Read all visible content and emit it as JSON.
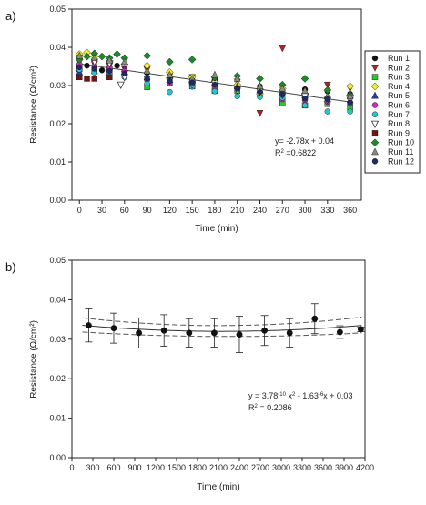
{
  "chart_data": [
    {
      "panel": "a)",
      "type": "scatter",
      "xlabel": "Time (min)",
      "ylabel": "Resistance (Ω/cm²)",
      "xlim": [
        -10,
        375
      ],
      "ylim": [
        0,
        0.05
      ],
      "x_ticks": [
        "0",
        "30",
        "60",
        "90",
        "120",
        "150",
        "180",
        "210",
        "240",
        "270",
        "300",
        "330",
        "360"
      ],
      "y_ticks": [
        "0.00",
        "0.01",
        "0.02",
        "0.03",
        "0.04",
        "0.05"
      ],
      "legend_position": "right",
      "trend": {
        "x0": 0,
        "x1": 360,
        "slope_per_min": -2.78e-05,
        "intercept": 0.0357
      },
      "annotation": {
        "line1": "y= -2.78x + 0.04",
        "r_pre": "R",
        "r_sup": "2",
        "r_post": " =0.6822"
      },
      "series": [
        {
          "name": "Run 1",
          "marker": "circle",
          "color": "#111111",
          "x": [
            0,
            0,
            10,
            20,
            20,
            30,
            40,
            40,
            50,
            60,
            90,
            120,
            150,
            180,
            210,
            240,
            270,
            300,
            330,
            360
          ],
          "y": [
            0.0352,
            0.0345,
            0.0352,
            0.0342,
            0.0348,
            0.034,
            0.0346,
            0.0337,
            0.0352,
            0.0335,
            0.0333,
            0.0323,
            0.0315,
            0.0315,
            0.0297,
            0.0298,
            0.0292,
            0.029,
            0.0285,
            0.0278
          ]
        },
        {
          "name": "Run 2",
          "marker": "triangle-down",
          "color": "#b22222",
          "x": [
            0,
            20,
            40,
            60,
            90,
            120,
            150,
            180,
            210,
            240,
            270,
            300,
            330,
            360
          ],
          "y": [
            0.0362,
            0.0356,
            0.0352,
            0.0344,
            0.0342,
            0.0325,
            0.0322,
            0.0318,
            0.031,
            0.0228,
            0.0398,
            0.0272,
            0.0302,
            0.0293
          ]
        },
        {
          "name": "Run 3",
          "marker": "square",
          "color": "#22cc22",
          "x": [
            0,
            20,
            40,
            60,
            90,
            120,
            150,
            180,
            210,
            240,
            270,
            300,
            330,
            360
          ],
          "y": [
            0.0343,
            0.0338,
            0.0342,
            0.0333,
            0.0296,
            0.0308,
            0.0298,
            0.0286,
            0.0286,
            0.0278,
            0.0253,
            0.0248,
            0.0252,
            0.0243
          ]
        },
        {
          "name": "Run 4",
          "marker": "diamond",
          "color": "#f0f020",
          "x": [
            0,
            10,
            20,
            40,
            60,
            90,
            120,
            150,
            180,
            210,
            240,
            270,
            300,
            330,
            360
          ],
          "y": [
            0.0382,
            0.0386,
            0.0376,
            0.0362,
            0.0356,
            0.0352,
            0.0335,
            0.0322,
            0.031,
            0.0302,
            0.0278,
            0.0292,
            0.0276,
            0.0258,
            0.0298
          ]
        },
        {
          "name": "Run 5",
          "marker": "triangle-up",
          "color": "#1e3cc8",
          "x": [
            0,
            20,
            40,
            60,
            90,
            120,
            150,
            180,
            210,
            240,
            270,
            300,
            330,
            360
          ],
          "y": [
            0.0335,
            0.0338,
            0.0348,
            0.0344,
            0.0322,
            0.0315,
            0.0312,
            0.0308,
            0.0298,
            0.0288,
            0.0285,
            0.0275,
            0.0272,
            0.0262
          ]
        },
        {
          "name": "Run 6",
          "marker": "circle",
          "color": "#e020c0",
          "x": [
            0,
            20,
            40,
            60,
            90,
            120,
            150,
            180,
            210,
            240,
            270,
            300,
            330,
            360
          ],
          "y": [
            0.0356,
            0.0352,
            0.0346,
            0.0338,
            0.0314,
            0.0306,
            0.0302,
            0.0297,
            0.0294,
            0.0292,
            0.0264,
            0.0262,
            0.0258,
            0.0252
          ]
        },
        {
          "name": "Run 7",
          "marker": "circle",
          "color": "#20c8d0",
          "x": [
            0,
            20,
            40,
            60,
            90,
            120,
            150,
            180,
            210,
            240,
            270,
            300,
            330,
            360
          ],
          "y": [
            0.0342,
            0.0334,
            0.0331,
            0.0322,
            0.0305,
            0.0283,
            0.0297,
            0.0285,
            0.0272,
            0.027,
            0.0268,
            0.0248,
            0.0232,
            0.0232
          ]
        },
        {
          "name": "Run 8",
          "marker": "triangle-down-open",
          "color": "#333333",
          "x": [
            0,
            20,
            40,
            55,
            60,
            90,
            120,
            150,
            180,
            210,
            240,
            270,
            300,
            330,
            360
          ],
          "y": [
            0.0372,
            0.0362,
            0.0358,
            0.0302,
            0.0322,
            0.0318,
            0.0312,
            0.0302,
            0.0305,
            0.0288,
            0.0284,
            0.0275,
            0.0272,
            0.0262,
            0.0262
          ]
        },
        {
          "name": "Run 9",
          "marker": "square",
          "color": "#7a1010",
          "x": [
            0,
            10,
            20,
            40
          ],
          "y": [
            0.0322,
            0.0318,
            0.0318,
            0.0322
          ]
        },
        {
          "name": "Run 10",
          "marker": "diamond",
          "color": "#1a8a2a",
          "x": [
            0,
            10,
            20,
            30,
            40,
            50,
            60,
            90,
            120,
            150,
            180,
            210,
            240,
            270,
            300,
            330,
            360
          ],
          "y": [
            0.0368,
            0.0376,
            0.0384,
            0.0376,
            0.0372,
            0.0382,
            0.0372,
            0.0378,
            0.0362,
            0.0368,
            0.0322,
            0.0325,
            0.0318,
            0.0302,
            0.0318,
            0.0288,
            0.0275
          ]
        },
        {
          "name": "Run 11",
          "marker": "triangle-up",
          "color": "#8a8a7a",
          "x": [
            0,
            20,
            40,
            60,
            90,
            120,
            150,
            180,
            210,
            240,
            270,
            300,
            330,
            360
          ],
          "y": [
            0.0378,
            0.0372,
            0.0366,
            0.0362,
            0.0338,
            0.0328,
            0.0318,
            0.0328,
            0.0318,
            0.0298,
            0.0292,
            0.0286,
            0.0272,
            0.0272
          ]
        },
        {
          "name": "Run 12",
          "marker": "circle",
          "color": "#1a2a6a",
          "x": [
            0,
            20,
            40,
            60,
            90,
            120,
            150,
            180,
            210,
            240,
            270,
            300,
            330,
            360
          ],
          "y": [
            0.0348,
            0.0344,
            0.0338,
            0.0332,
            0.0318,
            0.0312,
            0.0308,
            0.0302,
            0.0292,
            0.0283,
            0.0276,
            0.0266,
            0.0264,
            0.0256
          ]
        }
      ]
    },
    {
      "panel": "b)",
      "type": "scatter",
      "xlabel": "Time (min)",
      "ylabel": "Resistance (Ω/cm²)",
      "xlim": [
        0,
        4200
      ],
      "ylim": [
        0,
        0.05
      ],
      "x_ticks": [
        "0",
        "300",
        "600",
        "900",
        "1200",
        "1500",
        "1800",
        "2100",
        "2400",
        "2700",
        "3000",
        "3300",
        "3600",
        "3900",
        "4200"
      ],
      "y_ticks": [
        "0.00",
        "0.01",
        "0.02",
        "0.03",
        "0.04",
        "0.05"
      ],
      "points": {
        "x": [
          240,
          600,
          960,
          1320,
          1680,
          2040,
          2400,
          2760,
          3120,
          3480,
          3840,
          4140
        ],
        "y": [
          0.0335,
          0.0328,
          0.0316,
          0.0322,
          0.0316,
          0.0316,
          0.0312,
          0.0322,
          0.0316,
          0.0352,
          0.0318,
          0.0325
        ],
        "err": [
          0.0042,
          0.0038,
          0.0038,
          0.004,
          0.0036,
          0.0036,
          0.0046,
          0.0038,
          0.0036,
          0.0038,
          0.0016,
          0.0006
        ]
      },
      "fit": {
        "x0": 150,
        "x1": 4150,
        "c2": 3.78e-10,
        "c1": -1.63e-06,
        "c0": 0.03375
      },
      "band": {
        "x0": 150,
        "x1": 4150,
        "upper_offsets": [
          0.0019,
          0.0009,
          0.0021
        ],
        "lower_offsets": [
          0.0017,
          0.0008,
          0.0019
        ]
      },
      "annotation": {
        "l1a": "y = 3.78",
        "l1b": "-10",
        "l1c": " x",
        "l1d": "2",
        "l1e": " - 1.63",
        "l1f": "-6",
        "l1g": "x + 0.03",
        "r_pre": "R",
        "r_sup": "2",
        "r_post": " = 0.2086"
      }
    }
  ]
}
